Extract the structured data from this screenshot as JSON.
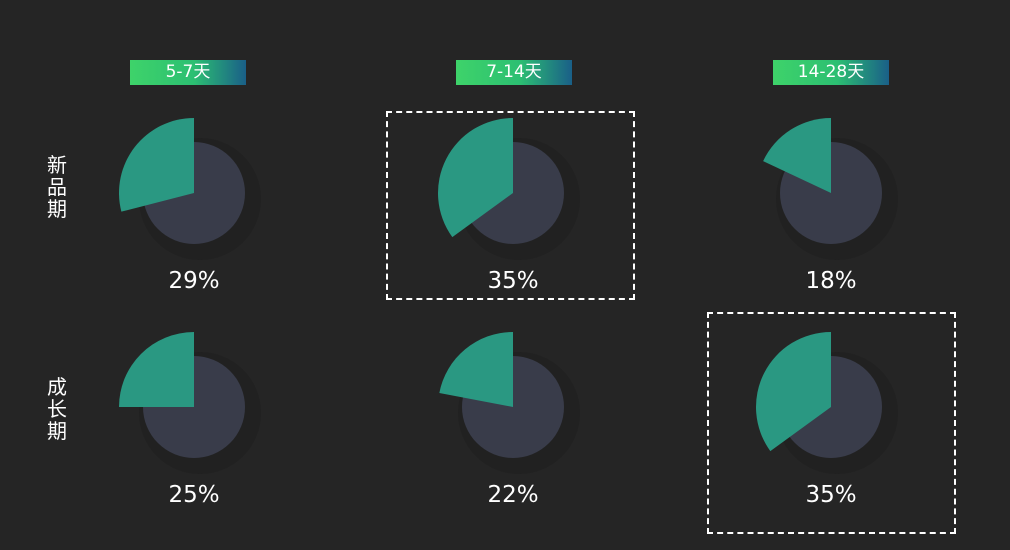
{
  "chart_data": {
    "type": "pie",
    "columns": [
      "5-7天",
      "7-14天",
      "14-28天"
    ],
    "rows": [
      "新品期",
      "成长期"
    ],
    "values": [
      [
        29,
        35,
        18
      ],
      [
        25,
        22,
        35
      ]
    ],
    "highlighted": [
      [
        0,
        1
      ],
      [
        1,
        2
      ]
    ],
    "colors": {
      "share": "#2a9882",
      "rest": "#393c4a",
      "header_gradient": [
        "#3ed36a",
        "#1a5f88"
      ]
    }
  }
}
